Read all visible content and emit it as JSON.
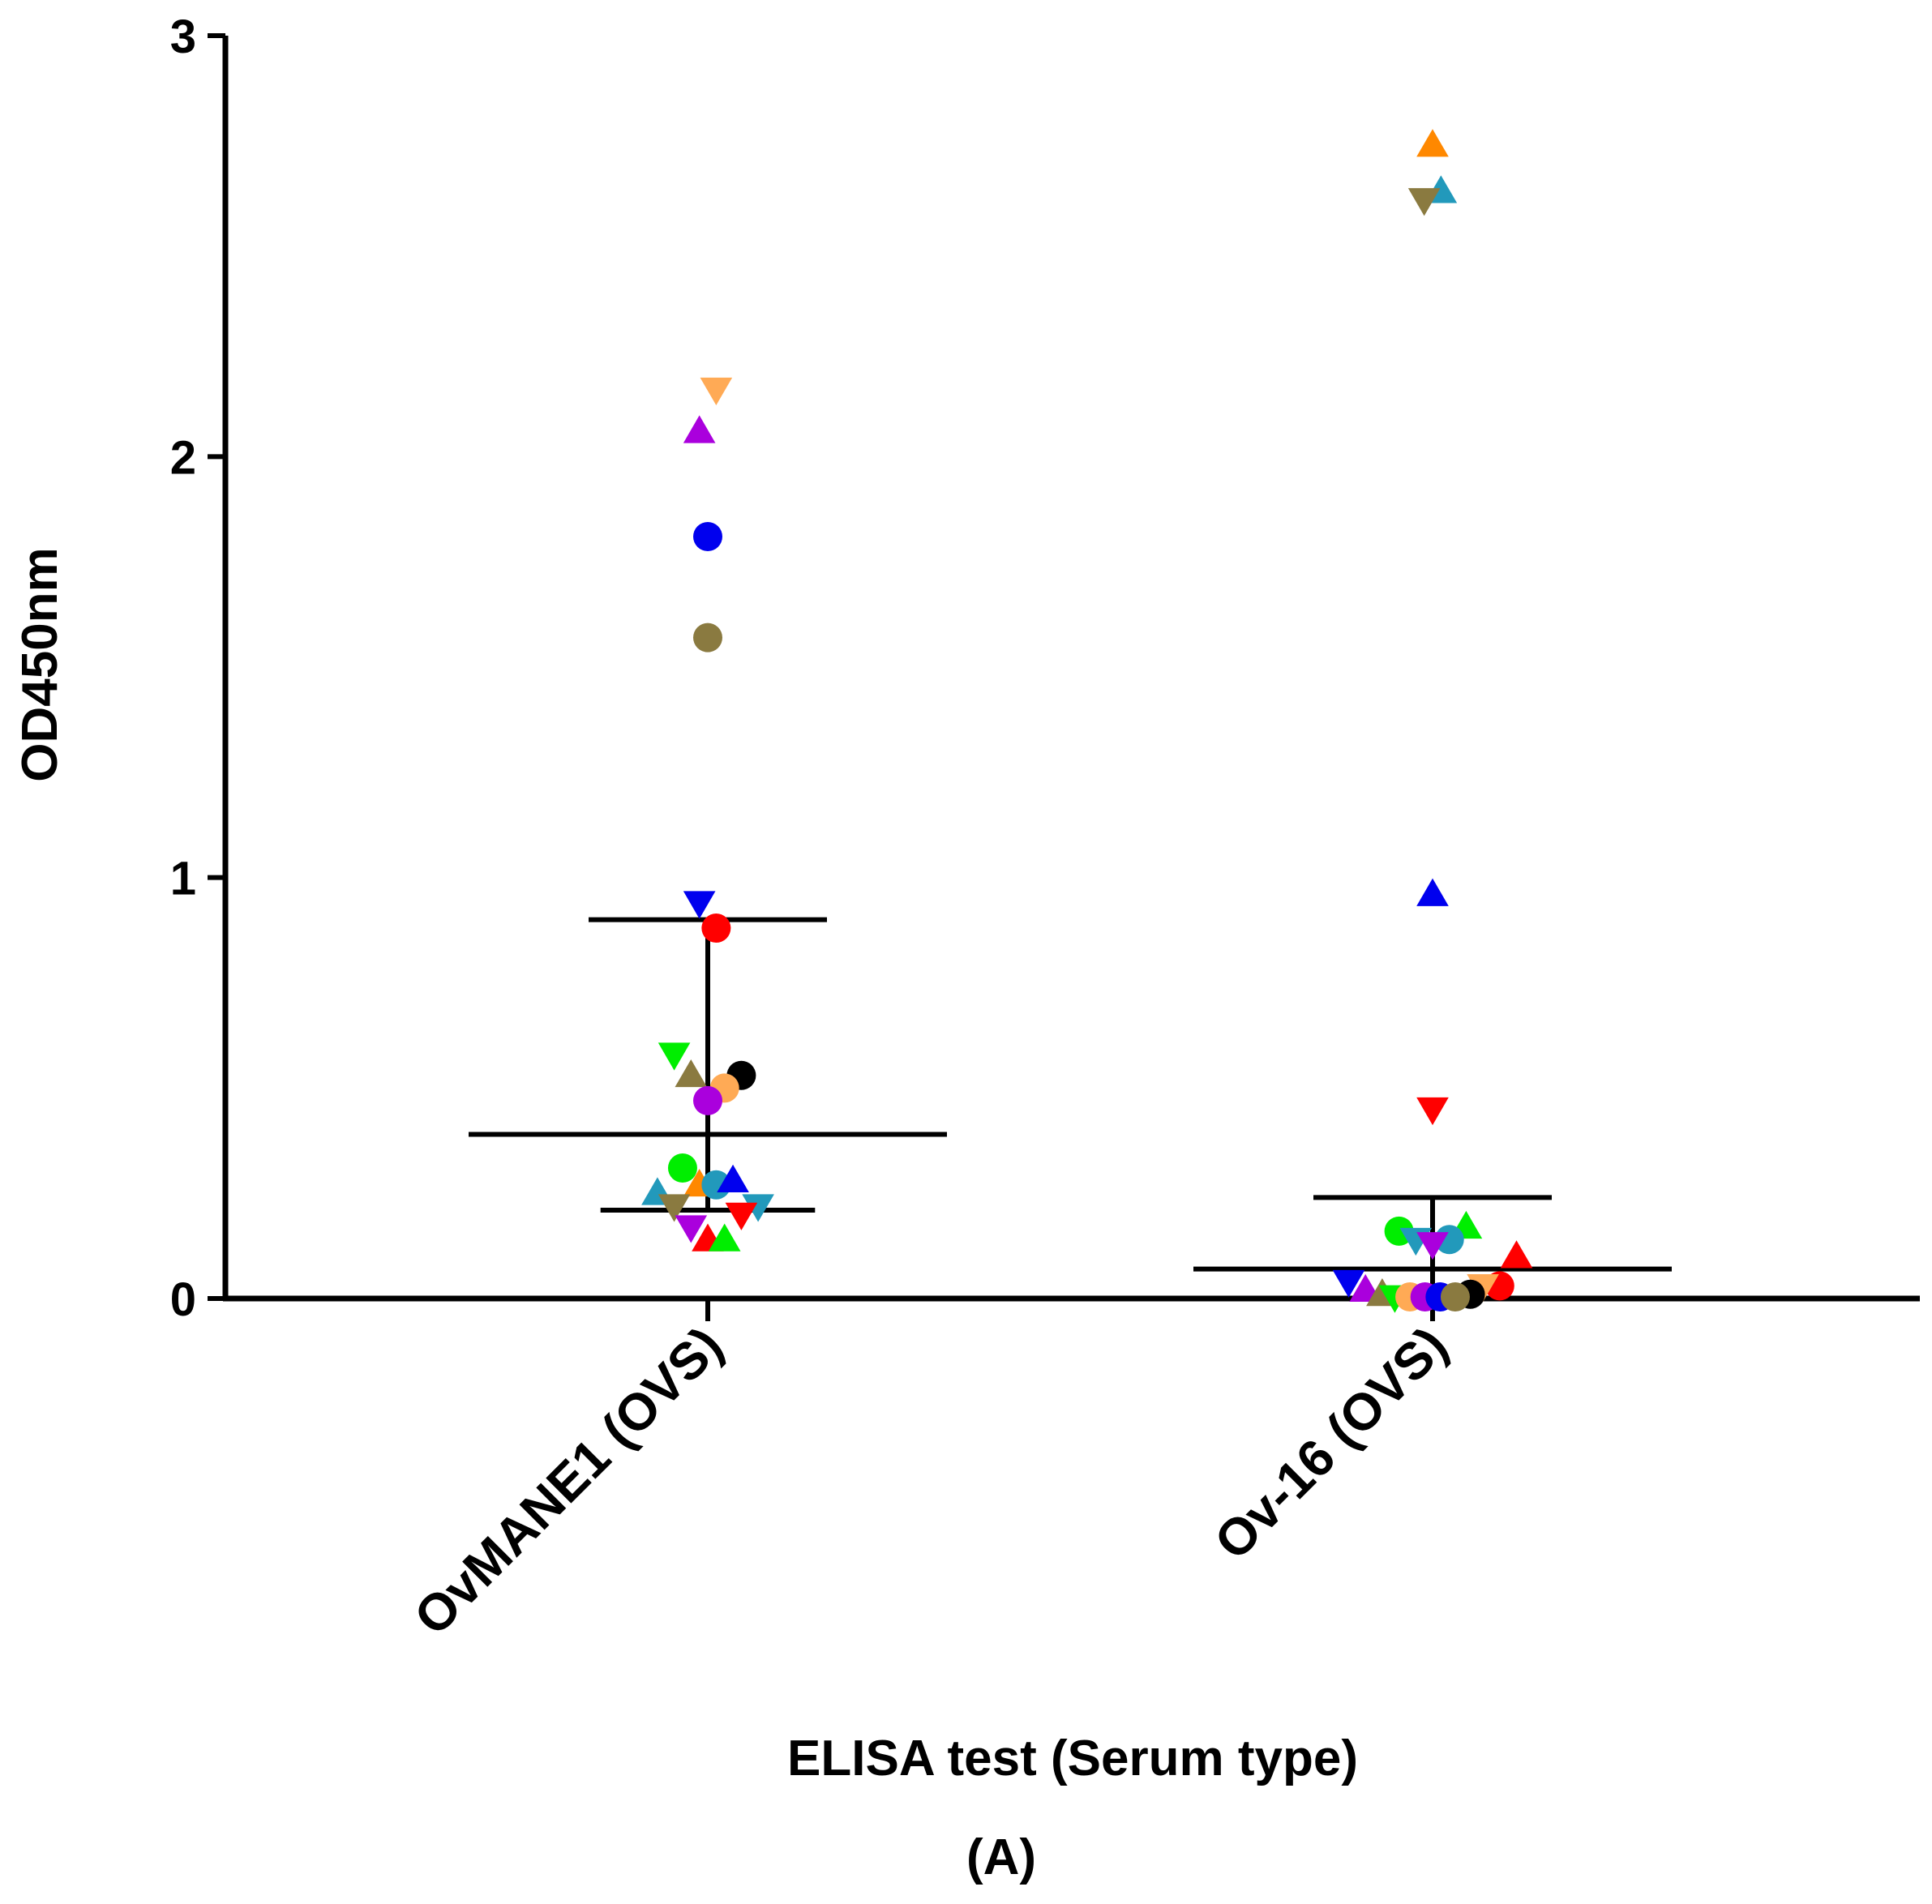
{
  "chart_data": {
    "type": "scatter",
    "title": "",
    "xlabel": "ELISA test (Serum type)",
    "ylabel": "OD450nm",
    "panel_label": "(A)",
    "ylim": [
      0,
      3
    ],
    "yticks": [
      0,
      1,
      2,
      3
    ],
    "ytick_labels": [
      "0",
      "1",
      "2",
      "3"
    ],
    "categories": [
      "OvMANE1 (OVS)",
      "Ov-16 (OVS)"
    ],
    "colors": {
      "red": "#ff0000",
      "green": "#00ee00",
      "blue": "#0000ee",
      "purple": "#aa00dd",
      "olive": "#8a7a40",
      "orange": "#ff8800",
      "lightorange": "#ffaa55",
      "teal": "#2299bb",
      "black": "#000000"
    },
    "groups": [
      {
        "name": "OvMANE1 (OVS)",
        "mean": 0.39,
        "sd_upper": 0.9,
        "sd_lower": 0.21,
        "points": [
          {
            "y": 2.16,
            "shape": "triangle-down",
            "color": "lightorange",
            "dx": 0.1
          },
          {
            "y": 2.06,
            "shape": "triangle-up",
            "color": "purple",
            "dx": -0.1
          },
          {
            "y": 1.81,
            "shape": "circle",
            "color": "blue",
            "dx": 0
          },
          {
            "y": 1.57,
            "shape": "circle",
            "color": "olive",
            "dx": 0
          },
          {
            "y": 0.94,
            "shape": "triangle-down",
            "color": "blue",
            "dx": -0.1
          },
          {
            "y": 0.88,
            "shape": "circle",
            "color": "red",
            "dx": 0.1
          },
          {
            "y": 0.58,
            "shape": "triangle-down",
            "color": "green",
            "dx": -0.4
          },
          {
            "y": 0.53,
            "shape": "triangle-up",
            "color": "olive",
            "dx": -0.2
          },
          {
            "y": 0.53,
            "shape": "circle",
            "color": "black",
            "dx": 0.4
          },
          {
            "y": 0.5,
            "shape": "circle",
            "color": "lightorange",
            "dx": 0.2
          },
          {
            "y": 0.47,
            "shape": "circle",
            "color": "purple",
            "dx": 0
          },
          {
            "y": 0.31,
            "shape": "circle",
            "color": "green",
            "dx": -0.3
          },
          {
            "y": 0.27,
            "shape": "triangle-up",
            "color": "orange",
            "dx": -0.1
          },
          {
            "y": 0.27,
            "shape": "circle",
            "color": "teal",
            "dx": 0.1
          },
          {
            "y": 0.28,
            "shape": "triangle-up",
            "color": "blue",
            "dx": 0.3
          },
          {
            "y": 0.25,
            "shape": "triangle-up",
            "color": "teal",
            "dx": -0.6
          },
          {
            "y": 0.22,
            "shape": "triangle-down",
            "color": "olive",
            "dx": -0.4
          },
          {
            "y": 0.22,
            "shape": "triangle-down",
            "color": "teal",
            "dx": 0.6
          },
          {
            "y": 0.2,
            "shape": "triangle-down",
            "color": "red",
            "dx": 0.4
          },
          {
            "y": 0.17,
            "shape": "triangle-down",
            "color": "purple",
            "dx": -0.2
          },
          {
            "y": 0.14,
            "shape": "triangle-up",
            "color": "red",
            "dx": 0
          },
          {
            "y": 0.14,
            "shape": "triangle-up",
            "color": "green",
            "dx": 0.2
          }
        ]
      },
      {
        "name": "Ov-16 (OVS)",
        "mean": 0.07,
        "sd_upper": 0.24,
        "sd_lower": 0.0,
        "points": [
          {
            "y": 2.74,
            "shape": "triangle-up",
            "color": "orange",
            "dx": 0
          },
          {
            "y": 2.63,
            "shape": "triangle-up",
            "color": "teal",
            "dx": 0.1
          },
          {
            "y": 2.61,
            "shape": "triangle-down",
            "color": "olive",
            "dx": -0.1
          },
          {
            "y": 0.96,
            "shape": "triangle-up",
            "color": "blue",
            "dx": 0
          },
          {
            "y": 0.45,
            "shape": "triangle-down",
            "color": "red",
            "dx": 0
          },
          {
            "y": 0.17,
            "shape": "triangle-up",
            "color": "green",
            "dx": 0.4
          },
          {
            "y": 0.16,
            "shape": "circle",
            "color": "green",
            "dx": -0.4
          },
          {
            "y": 0.14,
            "shape": "triangle-down",
            "color": "teal",
            "dx": -0.2
          },
          {
            "y": 0.14,
            "shape": "circle",
            "color": "teal",
            "dx": 0.2
          },
          {
            "y": 0.13,
            "shape": "triangle-down",
            "color": "purple",
            "dx": 0
          },
          {
            "y": 0.1,
            "shape": "triangle-up",
            "color": "red",
            "dx": 1.0
          },
          {
            "y": 0.04,
            "shape": "triangle-down",
            "color": "blue",
            "dx": -1.0
          },
          {
            "y": 0.03,
            "shape": "circle",
            "color": "red",
            "dx": 0.8
          },
          {
            "y": 0.03,
            "shape": "triangle-down",
            "color": "lightorange",
            "dx": 0.6
          },
          {
            "y": 0.02,
            "shape": "triangle-up",
            "color": "purple",
            "dx": -0.8
          },
          {
            "y": 0.01,
            "shape": "circle",
            "color": "black",
            "dx": 0.45
          },
          {
            "y": 0.01,
            "shape": "triangle-up",
            "color": "olive",
            "dx": -0.6
          },
          {
            "y": 0.0,
            "shape": "triangle-down",
            "color": "green",
            "dx": -0.45
          },
          {
            "y": 0.0,
            "shape": "circle",
            "color": "lightorange",
            "dx": -0.27
          },
          {
            "y": 0.0,
            "shape": "circle",
            "color": "purple",
            "dx": -0.09
          },
          {
            "y": 0.0,
            "shape": "circle",
            "color": "blue",
            "dx": 0.09
          },
          {
            "y": 0.0,
            "shape": "circle",
            "color": "olive",
            "dx": 0.27
          }
        ]
      }
    ]
  }
}
